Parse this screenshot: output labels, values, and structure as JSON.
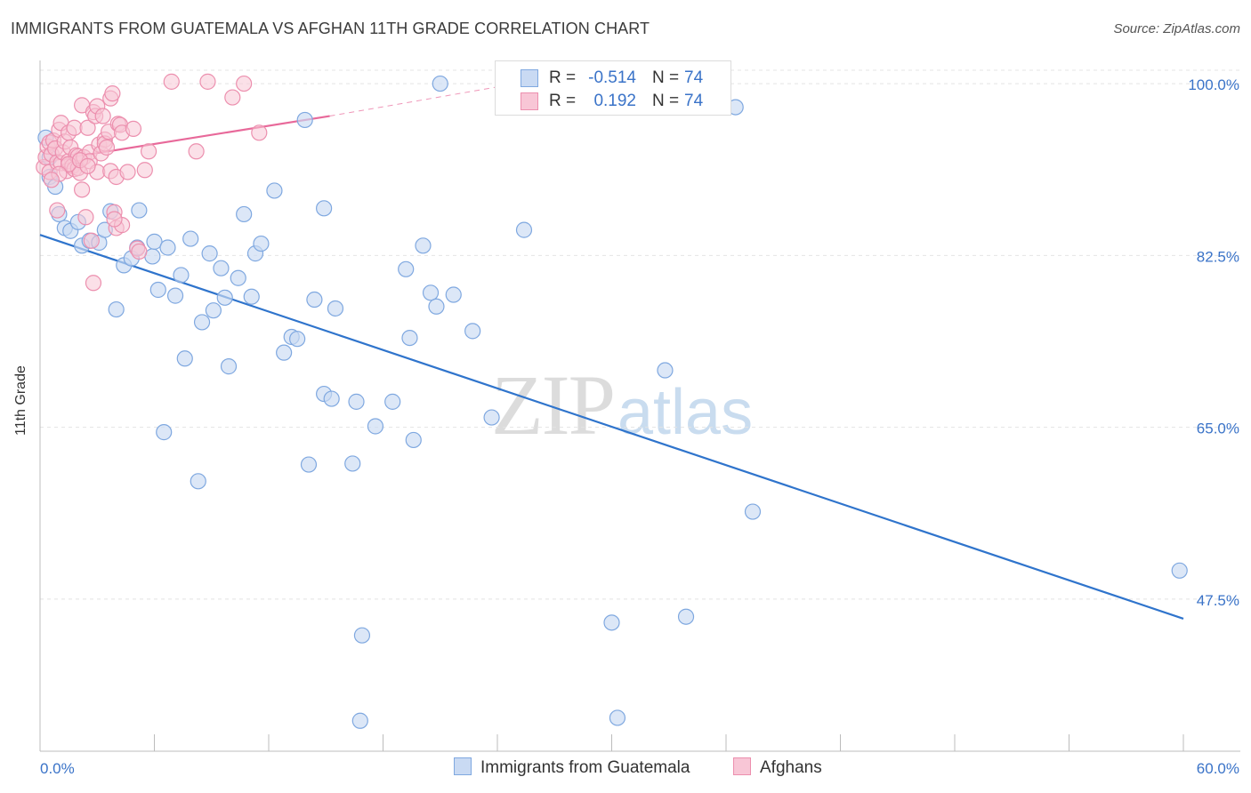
{
  "header": {
    "title": "IMMIGRANTS FROM GUATEMALA VS AFGHAN 11TH GRADE CORRELATION CHART",
    "source": "Source: ZipAtlas.com"
  },
  "watermark": {
    "zip": "ZIP",
    "atlas": "atlas"
  },
  "legend": {
    "rows": [
      {
        "r_label": "R =",
        "r_value": "-0.514",
        "n_label": "N =",
        "n_value": "74"
      },
      {
        "r_label": "R =",
        "r_value": "0.192",
        "n_label": "N =",
        "n_value": "74"
      }
    ]
  },
  "colors": {
    "blue_fill": "#c9daf3",
    "blue_stroke": "#7fa8e0",
    "blue_line": "#2f74cc",
    "pink_fill": "#f8c6d6",
    "pink_stroke": "#ec8fae",
    "pink_line": "#e8699a",
    "grid": "#e4e4e4",
    "axis_label": "#3a73c8"
  },
  "chart_data": {
    "type": "scatter",
    "title": "IMMIGRANTS FROM GUATEMALA VS AFGHAN 11TH GRADE CORRELATION CHART",
    "xlabel": "",
    "ylabel": "11th Grade",
    "xlim": [
      0,
      60
    ],
    "ylim": [
      32,
      102
    ],
    "x_tick_labels": [
      "0.0%",
      "60.0%"
    ],
    "y_ticks": [
      47.5,
      65.0,
      82.5,
      100.0
    ],
    "y_tick_labels": [
      "47.5%",
      "65.0%",
      "82.5%",
      "100.0%"
    ],
    "grid": true,
    "legend_position": "top-center",
    "series": [
      {
        "name": "Immigrants from Guatemala",
        "color": "#7fa8e0",
        "trend": {
          "x": [
            0,
            60
          ],
          "y": [
            84.6,
            45.5
          ],
          "dashed_extension": false
        },
        "points": [
          [
            0.3,
            94.5
          ],
          [
            0.5,
            92.5
          ],
          [
            0.5,
            90.5
          ],
          [
            0.8,
            89.5
          ],
          [
            1.0,
            86.7
          ],
          [
            1.3,
            85.3
          ],
          [
            1.6,
            85.0
          ],
          [
            2.0,
            85.9
          ],
          [
            2.2,
            83.5
          ],
          [
            2.6,
            84.0
          ],
          [
            3.1,
            83.8
          ],
          [
            3.4,
            85.1
          ],
          [
            3.7,
            87.0
          ],
          [
            4.4,
            81.5
          ],
          [
            4.0,
            77.0
          ],
          [
            4.8,
            82.2
          ],
          [
            5.1,
            83.3
          ],
          [
            5.2,
            87.1
          ],
          [
            5.9,
            82.4
          ],
          [
            6.0,
            83.9
          ],
          [
            6.2,
            79.0
          ],
          [
            6.5,
            64.5
          ],
          [
            6.7,
            83.3
          ],
          [
            7.1,
            78.4
          ],
          [
            7.4,
            80.5
          ],
          [
            7.6,
            72.0
          ],
          [
            7.9,
            84.2
          ],
          [
            8.3,
            59.5
          ],
          [
            8.5,
            75.7
          ],
          [
            8.9,
            82.7
          ],
          [
            9.1,
            76.9
          ],
          [
            9.5,
            81.2
          ],
          [
            9.7,
            78.2
          ],
          [
            9.9,
            71.2
          ],
          [
            10.4,
            80.2
          ],
          [
            10.7,
            86.7
          ],
          [
            11.1,
            78.3
          ],
          [
            11.3,
            82.7
          ],
          [
            11.6,
            83.7
          ],
          [
            12.3,
            89.1
          ],
          [
            12.8,
            72.6
          ],
          [
            13.2,
            74.2
          ],
          [
            13.5,
            74.0
          ],
          [
            13.9,
            96.3
          ],
          [
            14.1,
            61.2
          ],
          [
            14.4,
            78.0
          ],
          [
            14.9,
            68.4
          ],
          [
            14.9,
            87.3
          ],
          [
            15.3,
            67.9
          ],
          [
            15.5,
            77.1
          ],
          [
            16.4,
            61.3
          ],
          [
            16.6,
            67.6
          ],
          [
            16.8,
            35.1
          ],
          [
            16.9,
            43.8
          ],
          [
            17.6,
            65.1
          ],
          [
            18.5,
            67.6
          ],
          [
            19.2,
            81.1
          ],
          [
            19.4,
            74.1
          ],
          [
            19.6,
            63.7
          ],
          [
            20.1,
            83.5
          ],
          [
            20.5,
            78.7
          ],
          [
            20.8,
            77.3
          ],
          [
            21.0,
            100.0
          ],
          [
            21.7,
            78.5
          ],
          [
            22.7,
            74.8
          ],
          [
            23.7,
            66.0
          ],
          [
            25.4,
            85.1
          ],
          [
            30.0,
            45.1
          ],
          [
            30.3,
            35.4
          ],
          [
            32.8,
            70.8
          ],
          [
            33.9,
            45.7
          ],
          [
            36.5,
            97.6
          ],
          [
            37.4,
            56.4
          ],
          [
            59.8,
            50.4
          ]
        ]
      },
      {
        "name": "Afghans",
        "color": "#ec8fae",
        "trend": {
          "x": [
            0,
            15.2
          ],
          "y": [
            92.0,
            96.7
          ],
          "dashed_extension": true,
          "dashed_to": [
            25,
            100
          ]
        },
        "points": [
          [
            0.2,
            91.5
          ],
          [
            0.3,
            92.5
          ],
          [
            0.4,
            93.6
          ],
          [
            0.5,
            91.0
          ],
          [
            0.5,
            94.0
          ],
          [
            0.6,
            92.8
          ],
          [
            0.7,
            94.2
          ],
          [
            0.8,
            93.4
          ],
          [
            0.9,
            92.0
          ],
          [
            0.9,
            87.1
          ],
          [
            1.0,
            95.3
          ],
          [
            1.1,
            96.0
          ],
          [
            1.1,
            91.9
          ],
          [
            1.2,
            93.0
          ],
          [
            1.3,
            94.1
          ],
          [
            1.4,
            91.1
          ],
          [
            1.5,
            92.1
          ],
          [
            1.5,
            95.0
          ],
          [
            1.6,
            93.5
          ],
          [
            1.7,
            91.6
          ],
          [
            1.8,
            95.5
          ],
          [
            1.8,
            91.3
          ],
          [
            1.9,
            92.7
          ],
          [
            2.0,
            91.4
          ],
          [
            2.0,
            92.6
          ],
          [
            2.1,
            90.9
          ],
          [
            2.2,
            97.8
          ],
          [
            2.2,
            89.2
          ],
          [
            2.3,
            92.5
          ],
          [
            2.4,
            86.4
          ],
          [
            2.5,
            95.5
          ],
          [
            2.6,
            93.0
          ],
          [
            2.6,
            92.1
          ],
          [
            2.7,
            84.0
          ],
          [
            2.8,
            97.1
          ],
          [
            2.8,
            79.7
          ],
          [
            2.9,
            96.7
          ],
          [
            3.0,
            97.7
          ],
          [
            3.0,
            91.0
          ],
          [
            3.1,
            93.8
          ],
          [
            3.2,
            92.9
          ],
          [
            3.3,
            96.7
          ],
          [
            3.4,
            94.3
          ],
          [
            3.4,
            93.9
          ],
          [
            3.5,
            93.5
          ],
          [
            3.6,
            95.1
          ],
          [
            3.7,
            91.1
          ],
          [
            3.7,
            98.5
          ],
          [
            3.8,
            99.0
          ],
          [
            3.9,
            86.9
          ],
          [
            4.0,
            85.3
          ],
          [
            4.0,
            90.5
          ],
          [
            4.1,
            95.9
          ],
          [
            4.2,
            95.8
          ],
          [
            4.3,
            95.0
          ],
          [
            4.3,
            85.6
          ],
          [
            4.6,
            91.0
          ],
          [
            4.9,
            95.4
          ],
          [
            5.1,
            83.2
          ],
          [
            5.2,
            82.9
          ],
          [
            5.5,
            91.2
          ],
          [
            5.7,
            93.1
          ],
          [
            6.9,
            100.2
          ],
          [
            8.2,
            93.1
          ],
          [
            8.8,
            100.2
          ],
          [
            10.1,
            98.6
          ],
          [
            10.7,
            100.0
          ],
          [
            11.5,
            95.0
          ],
          [
            1.5,
            91.8
          ],
          [
            2.1,
            92.2
          ],
          [
            1.0,
            90.8
          ],
          [
            2.5,
            91.6
          ],
          [
            3.9,
            86.2
          ],
          [
            0.6,
            90.2
          ]
        ]
      }
    ]
  },
  "bottom_legend": {
    "items": [
      {
        "label": "Immigrants from Guatemala"
      },
      {
        "label": "Afghans"
      }
    ]
  }
}
